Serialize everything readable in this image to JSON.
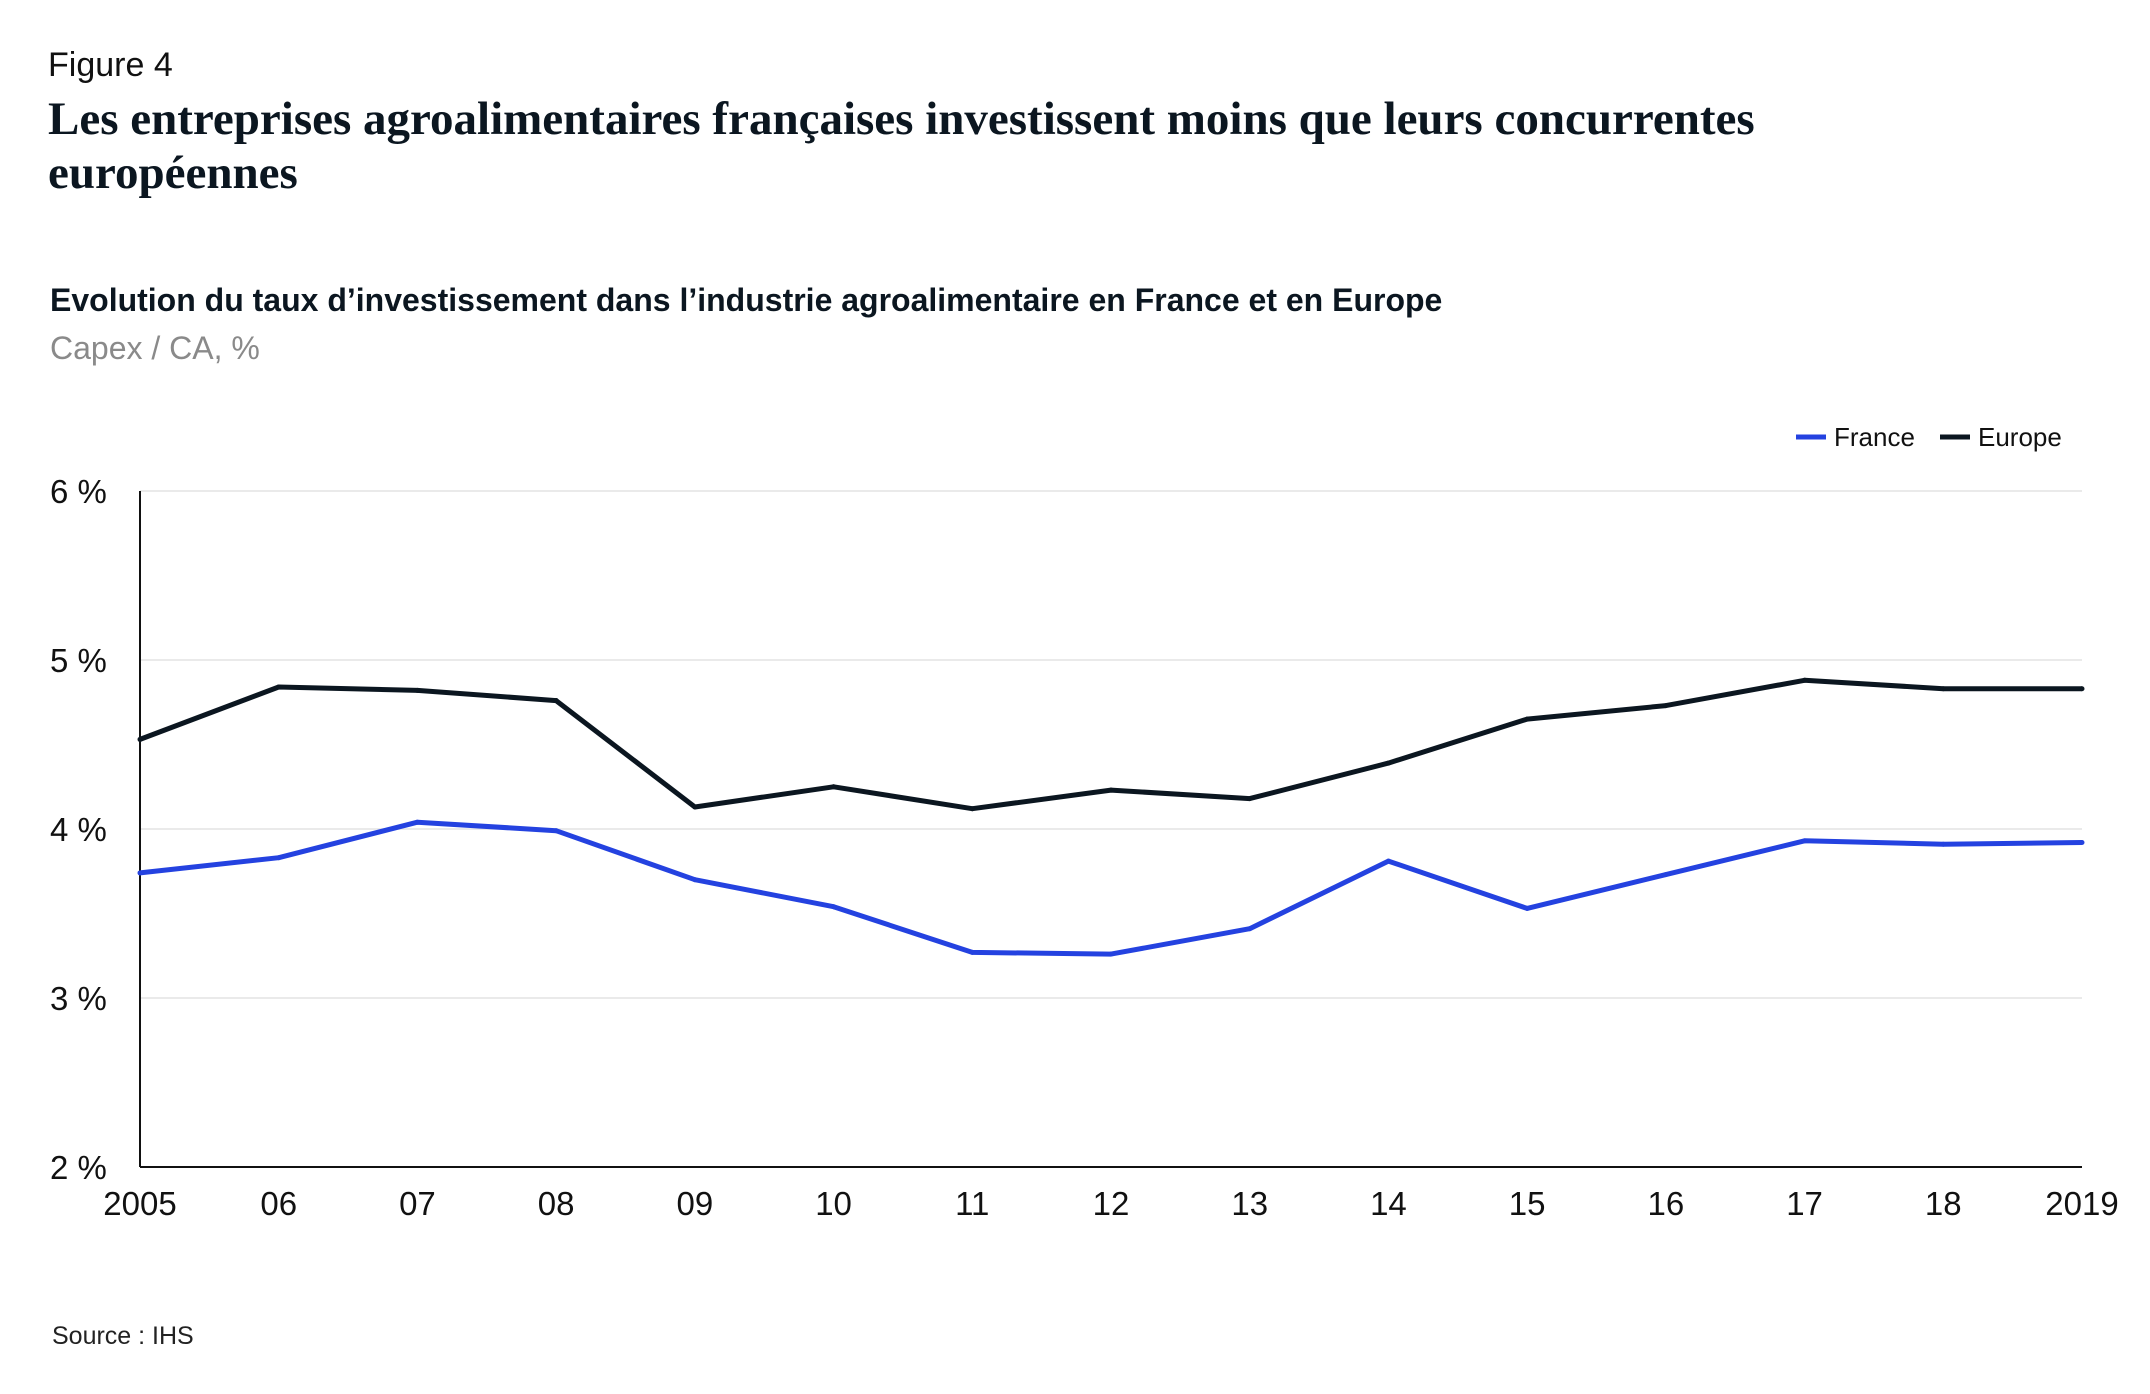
{
  "figure_label": "Figure 4",
  "title": "Les entreprises agroalimentaires françaises investissent moins que leurs concurrentes européennes",
  "source": "Source : IHS",
  "colors": {
    "france": "#2442e0",
    "europe": "#0b1620",
    "grid": "#e4e4e4",
    "axis": "#111111"
  },
  "chart_data": {
    "type": "line",
    "title": "Evolution du taux d’investissement dans l’industrie agroalimentaire en France et en Europe",
    "subtitle": "Capex / CA, %",
    "xlabel": "",
    "ylabel": "",
    "x": [
      2005,
      2006,
      2007,
      2008,
      2009,
      2010,
      2011,
      2012,
      2013,
      2014,
      2015,
      2016,
      2017,
      2018,
      2019
    ],
    "x_tick_labels": [
      "2005",
      "06",
      "07",
      "08",
      "09",
      "10",
      "11",
      "12",
      "13",
      "14",
      "15",
      "16",
      "17",
      "18",
      "2019"
    ],
    "ylim": [
      2,
      6
    ],
    "y_ticks": [
      2,
      3,
      4,
      5,
      6
    ],
    "y_tick_labels": [
      "2 %",
      "3 %",
      "4 %",
      "5 %",
      "6 %"
    ],
    "grid": true,
    "legend_placement": "top-right",
    "series": [
      {
        "name": "France",
        "color": "#2442e0",
        "values": [
          3.74,
          3.83,
          4.04,
          3.99,
          3.7,
          3.54,
          3.27,
          3.26,
          3.41,
          3.81,
          3.53,
          3.73,
          3.93,
          3.91,
          3.92
        ]
      },
      {
        "name": "Europe",
        "color": "#0b1620",
        "values": [
          4.53,
          4.84,
          4.82,
          4.76,
          4.13,
          4.25,
          4.12,
          4.23,
          4.18,
          4.39,
          4.65,
          4.73,
          4.88,
          4.83,
          4.83
        ]
      }
    ]
  }
}
